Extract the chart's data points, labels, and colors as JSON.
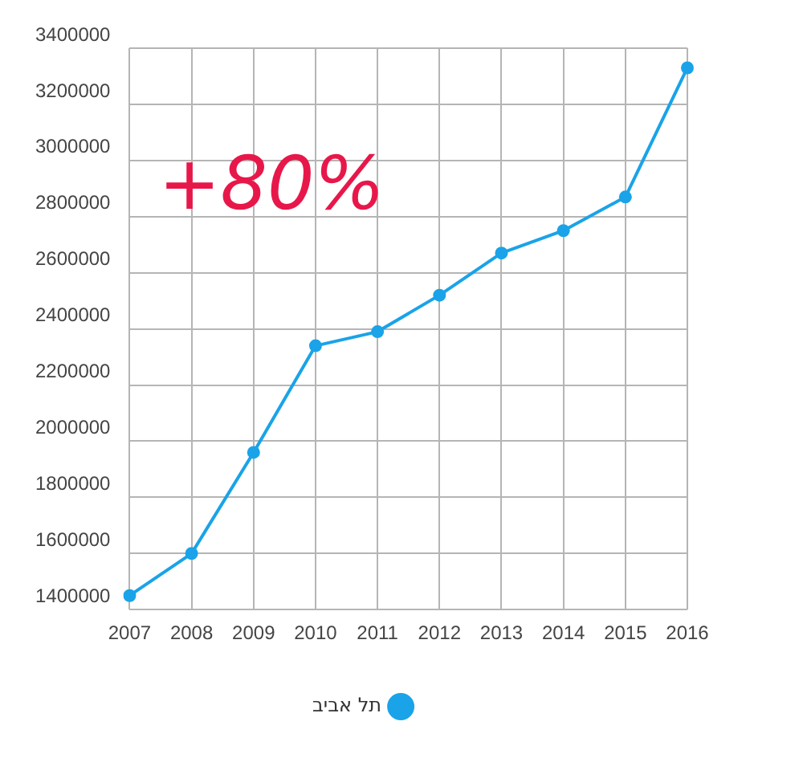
{
  "chart_data": {
    "type": "line",
    "categories": [
      "2007",
      "2008",
      "2009",
      "2010",
      "2011",
      "2012",
      "2013",
      "2014",
      "2015",
      "2016"
    ],
    "series": [
      {
        "name": "תל אביב",
        "color": "#1aa3e8",
        "values": [
          1450000,
          1600000,
          1960000,
          2340000,
          2390000,
          2520000,
          2670000,
          2750000,
          2870000,
          3330000
        ]
      }
    ],
    "ylim": [
      1400000,
      3400000
    ],
    "yticks": [
      1400000,
      1600000,
      1800000,
      2000000,
      2200000,
      2400000,
      2600000,
      2800000,
      3000000,
      3200000,
      3400000
    ],
    "grid": true,
    "legend": "bottom",
    "marker": "circle",
    "annotations": [
      "+80%"
    ]
  }
}
